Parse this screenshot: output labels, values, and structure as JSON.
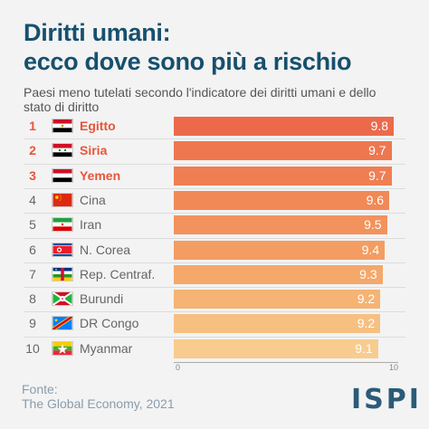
{
  "header": {
    "title_line1": "Diritti umani:",
    "title_line2": "ecco dove sono più a rischio",
    "subtitle": "Paesi meno tutelati secondo l'indicatore dei diritti umani e dello stato di diritto"
  },
  "chart_data": {
    "type": "bar",
    "orientation": "horizontal",
    "categories": [
      "Egitto",
      "Siria",
      "Yemen",
      "Cina",
      "Iran",
      "N. Corea",
      "Rep. Centraf.",
      "Burundi",
      "DR Congo",
      "Myanmar"
    ],
    "ranks": [
      "1",
      "2",
      "3",
      "4",
      "5",
      "6",
      "7",
      "8",
      "9",
      "10"
    ],
    "values": [
      9.8,
      9.7,
      9.7,
      9.6,
      9.5,
      9.4,
      9.3,
      9.2,
      9.2,
      9.1
    ],
    "value_labels": [
      "9.8",
      "9.7",
      "9.7",
      "9.6",
      "9.5",
      "9.4",
      "9.3",
      "9.2",
      "9.2",
      "9.1"
    ],
    "highlighted_ranks": [
      1,
      2,
      3
    ],
    "xlim": [
      0,
      10
    ],
    "xticks": [
      "0",
      "10"
    ],
    "grid": false,
    "colors": [
      "#ec6a4b",
      "#ee774f",
      "#ef7e53",
      "#f18957",
      "#f2925c",
      "#f39d62",
      "#f4a86a",
      "#f5b374",
      "#f6c081",
      "#f8cc8f"
    ]
  },
  "flags": [
    "egypt-flag-icon",
    "syria-flag-icon",
    "yemen-flag-icon",
    "china-flag-icon",
    "iran-flag-icon",
    "north-korea-flag-icon",
    "car-flag-icon",
    "burundi-flag-icon",
    "drc-flag-icon",
    "myanmar-flag-icon"
  ],
  "footer": {
    "source_label": "Fonte:",
    "source_text": "The Global Economy, 2021",
    "logo": "ISPI"
  },
  "colors": {
    "title": "#17506d",
    "highlight": "#e8553b",
    "background": "#f3f3f3"
  }
}
